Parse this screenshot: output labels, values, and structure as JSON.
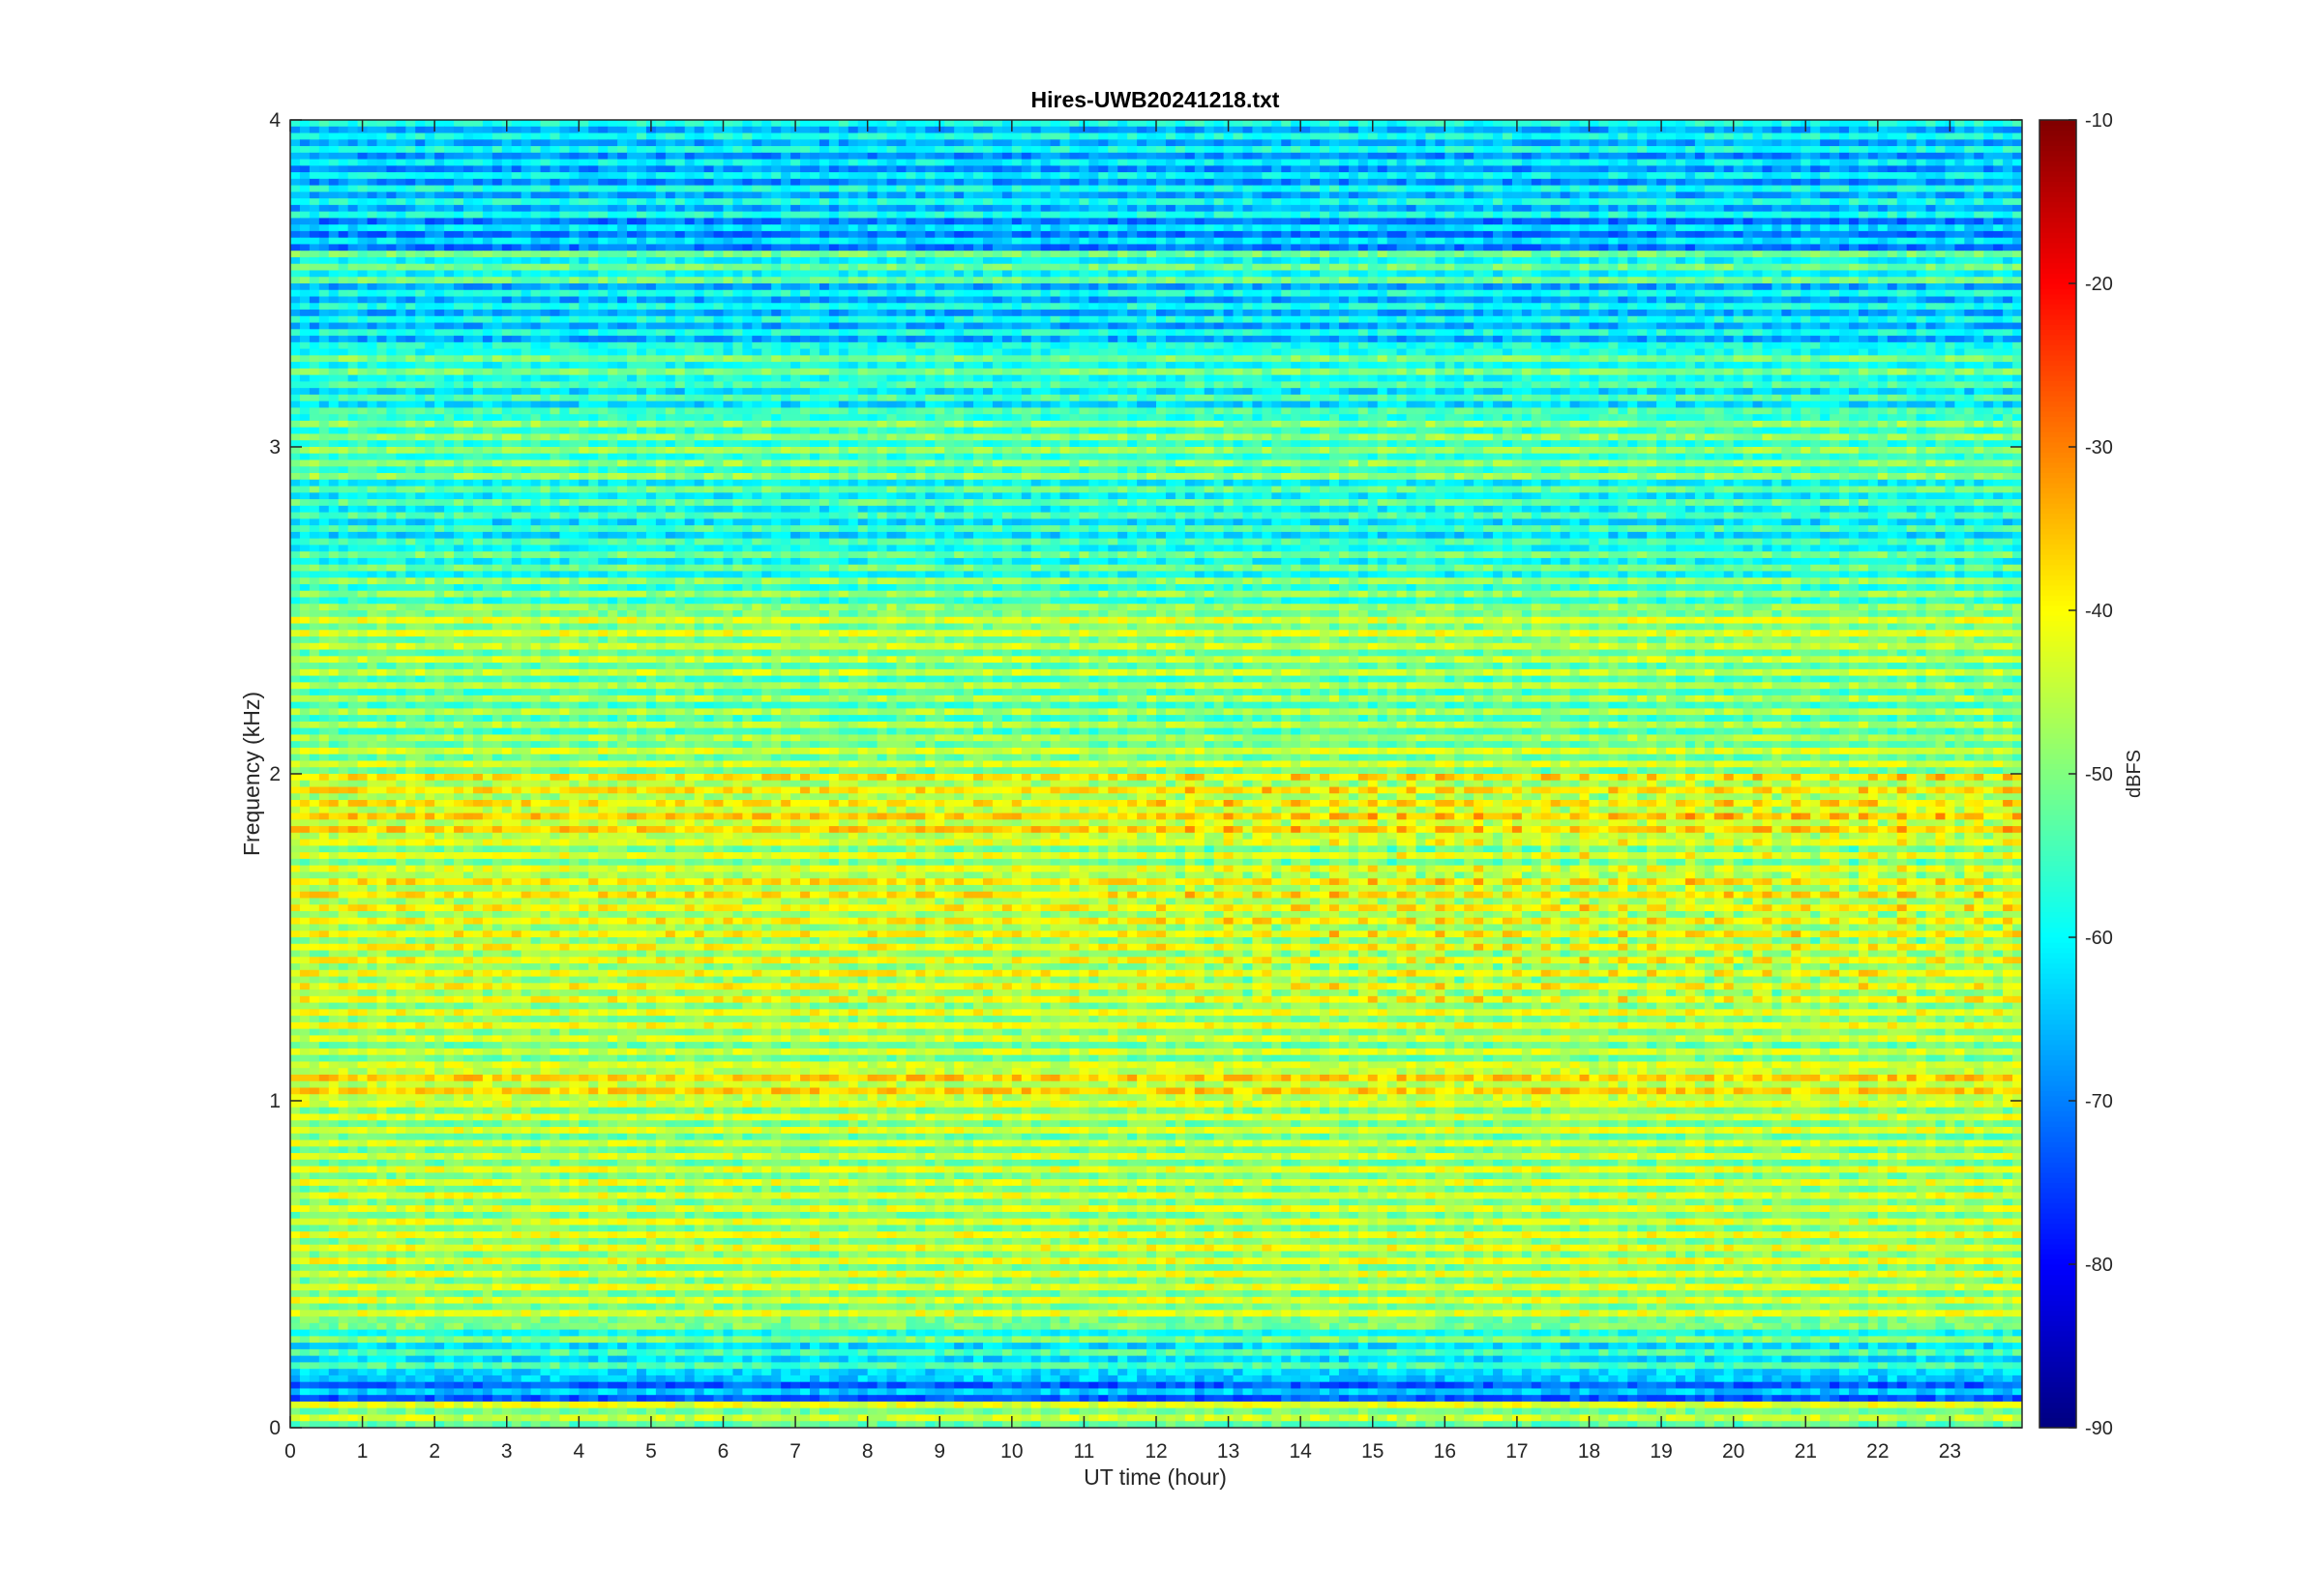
{
  "chart_data": {
    "type": "heatmap",
    "title": "Hires-UWB20241218.txt",
    "xlabel": "UT time (hour)",
    "ylabel": "Frequency (kHz)",
    "colorbar_label": "dBFS",
    "colormap": "jet",
    "xlim": [
      0,
      24
    ],
    "ylim": [
      0,
      4
    ],
    "clim": [
      -90,
      -10
    ],
    "x_ticks": [
      0,
      1,
      2,
      3,
      4,
      5,
      6,
      7,
      8,
      9,
      10,
      11,
      12,
      13,
      14,
      15,
      16,
      17,
      18,
      19,
      20,
      21,
      22,
      23
    ],
    "x_tick_labels": [
      "0",
      "1",
      "2",
      "3",
      "4",
      "5",
      "6",
      "7",
      "8",
      "9",
      "10",
      "11",
      "12",
      "13",
      "14",
      "15",
      "16",
      "17",
      "18",
      "19",
      "20",
      "21",
      "22",
      "23"
    ],
    "y_ticks": [
      0,
      1,
      2,
      3,
      4
    ],
    "y_tick_labels": [
      "0",
      "1",
      "2",
      "3",
      "4"
    ],
    "colorbar_ticks": [
      -90,
      -80,
      -70,
      -60,
      -50,
      -40,
      -30,
      -20,
      -10
    ],
    "colorbar_tick_labels": [
      "-90",
      "-80",
      "-70",
      "-60",
      "-50",
      "-40",
      "-30",
      "-20",
      "-10"
    ],
    "grid": false,
    "description_levels": {
      "note": "Approximate band levels in dBFS by frequency (kHz), reflecting the visible horizontal striping",
      "frequency_khz": [
        0.03,
        0.05,
        0.1,
        0.2,
        0.3,
        0.35,
        0.45,
        0.55,
        0.65,
        0.75,
        0.85,
        0.95,
        1.05,
        1.15,
        1.25,
        1.35,
        1.45,
        1.55,
        1.65,
        1.75,
        1.85,
        1.95,
        2.05,
        2.15,
        2.25,
        2.35,
        2.45,
        2.55,
        2.65,
        2.75,
        2.85,
        2.95,
        3.05,
        3.15,
        3.25,
        3.35,
        3.45,
        3.55,
        3.65,
        3.75,
        3.85,
        3.95
      ],
      "level_dbfs": [
        -48,
        -46,
        -68,
        -58,
        -54,
        -46,
        -46,
        -45,
        -46,
        -46,
        -47,
        -46,
        -40,
        -47,
        -45,
        -44,
        -44,
        -43,
        -42,
        -46,
        -40,
        -42,
        -47,
        -50,
        -50,
        -48,
        -46,
        -52,
        -55,
        -58,
        -56,
        -52,
        -52,
        -58,
        -54,
        -62,
        -62,
        -55,
        -66,
        -62,
        -64,
        -62
      ]
    }
  }
}
